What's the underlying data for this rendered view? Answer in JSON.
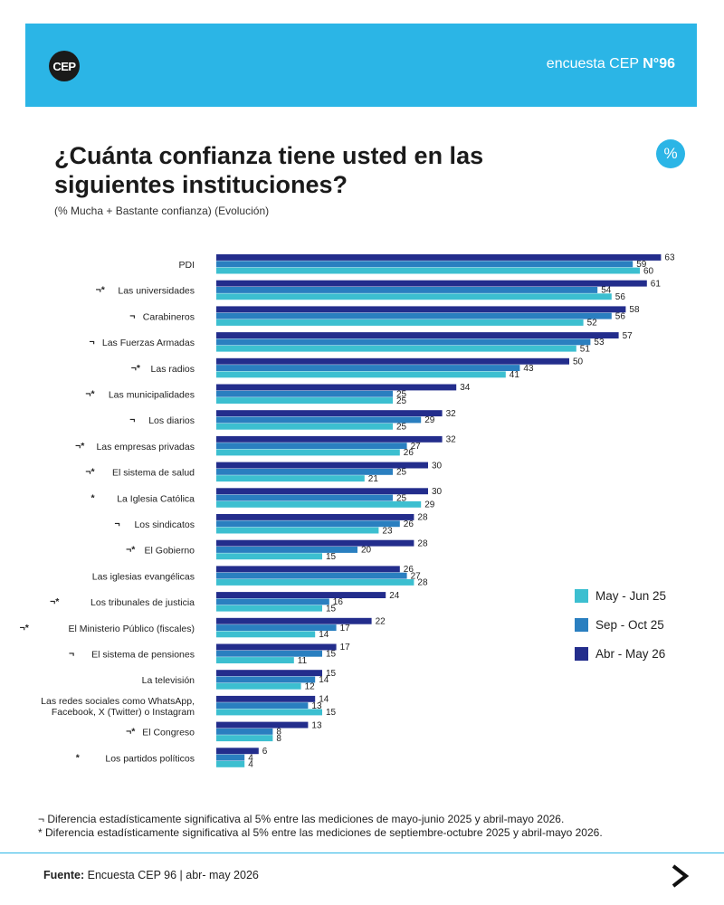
{
  "header": {
    "logo_text": "CEP",
    "brand_prefix": "encuesta CEP",
    "brand_number": "N°96"
  },
  "percent_badge": "%",
  "colors": {
    "header_bg": "#2bb5e6",
    "may_jun_25": "#3cbfd0",
    "sep_oct_25": "#2a7fc0",
    "abr_may_26": "#232d8c"
  },
  "chart_data": {
    "type": "bar",
    "orientation": "horizontal",
    "title": "¿Cuánta confianza tiene usted en las siguientes instituciones?",
    "subtitle": "(% Mucha + Bastante confianza) (Evolución)",
    "categories": [
      {
        "marks": "",
        "label": "PDI"
      },
      {
        "marks": "¬*",
        "label": "Las universidades"
      },
      {
        "marks": "¬",
        "label": "Carabineros"
      },
      {
        "marks": "¬",
        "label": "Las Fuerzas Armadas"
      },
      {
        "marks": "¬*",
        "label": "Las radios"
      },
      {
        "marks": "¬*",
        "label": "Las municipalidades"
      },
      {
        "marks": "¬",
        "label": "Los diarios"
      },
      {
        "marks": "¬*",
        "label": "Las empresas privadas"
      },
      {
        "marks": "¬*",
        "label": "El sistema de salud"
      },
      {
        "marks": "*",
        "label": "La Iglesia Católica"
      },
      {
        "marks": "¬",
        "label": "Los sindicatos"
      },
      {
        "marks": "¬*",
        "label": "El Gobierno"
      },
      {
        "marks": "",
        "label": "Las iglesias evangélicas"
      },
      {
        "marks": "¬*",
        "label": "Los tribunales de justicia"
      },
      {
        "marks": "¬*",
        "label": "El Ministerio Público (fiscales)"
      },
      {
        "marks": "¬",
        "label": "El sistema de pensiones"
      },
      {
        "marks": "",
        "label": "La televisión"
      },
      {
        "marks": "",
        "label": "Las redes sociales como WhatsApp,|Facebook, X (Twitter) o Instagram"
      },
      {
        "marks": "¬*",
        "label": "El Congreso"
      },
      {
        "marks": "*",
        "label": "Los partidos políticos"
      }
    ],
    "series": [
      {
        "name": "Abr - May 26",
        "color": "#232d8c",
        "values": [
          63,
          61,
          58,
          57,
          50,
          34,
          32,
          32,
          30,
          30,
          28,
          28,
          26,
          24,
          22,
          17,
          15,
          14,
          13,
          6
        ]
      },
      {
        "name": "Sep - Oct 25",
        "color": "#2a7fc0",
        "values": [
          59,
          54,
          56,
          53,
          43,
          25,
          29,
          27,
          25,
          25,
          26,
          20,
          27,
          16,
          17,
          15,
          14,
          13,
          8,
          4
        ]
      },
      {
        "name": "May - Jun 25",
        "color": "#3cbfd0",
        "values": [
          60,
          56,
          52,
          51,
          41,
          25,
          25,
          26,
          21,
          29,
          23,
          15,
          28,
          15,
          14,
          11,
          12,
          15,
          8,
          4
        ]
      }
    ],
    "xlim": [
      0,
      63
    ]
  },
  "legend": [
    {
      "name": "May - Jun 25",
      "color": "#3cbfd0"
    },
    {
      "name": "Sep - Oct 25",
      "color": "#2a7fc0"
    },
    {
      "name": "Abr - May 26",
      "color": "#232d8c"
    }
  ],
  "notes": {
    "note1": "¬ Diferencia estadísticamente significativa al 5% entre las mediciones de mayo-junio 2025 y abril-mayo 2026.",
    "note2": "* Diferencia estadísticamente significativa al 5% entre las mediciones de septiembre-octubre 2025 y abril-mayo 2026."
  },
  "source": {
    "label": "Fuente:",
    "text": "Encuesta CEP 96 | abr- may 2026"
  }
}
